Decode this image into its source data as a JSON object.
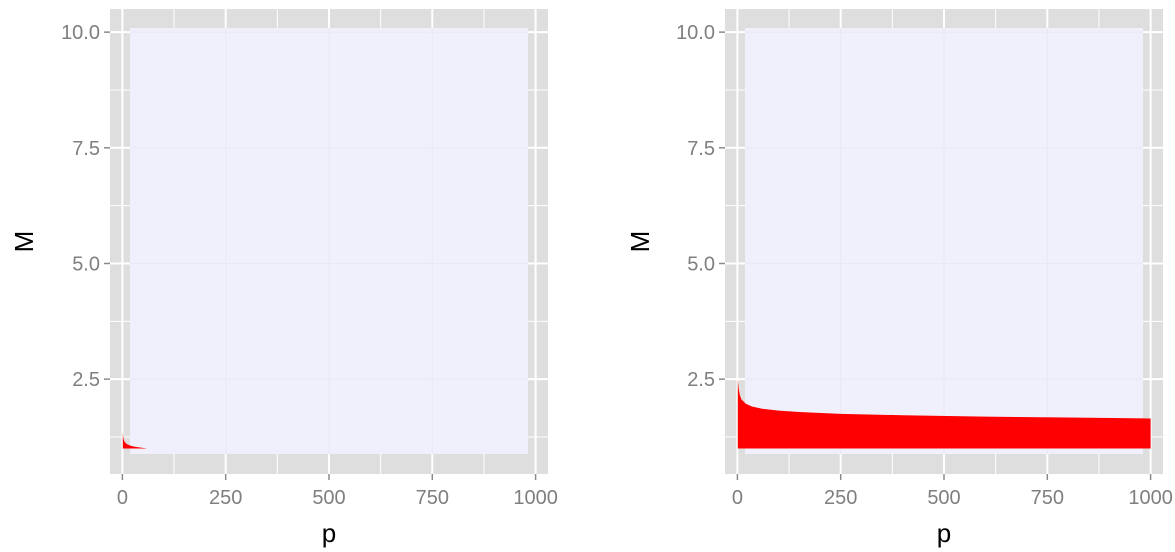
{
  "chart_data": [
    {
      "type": "area",
      "xlabel": "p",
      "ylabel": "M",
      "xlim": [
        -30,
        1030
      ],
      "ylim": [
        0.45,
        10.5
      ],
      "x_ticks": [
        0,
        250,
        500,
        750,
        1000
      ],
      "x_tick_labels": [
        "0",
        "250",
        "500",
        "750",
        "1000"
      ],
      "y_ticks": [
        2.5,
        5.0,
        7.5,
        10.0
      ],
      "y_tick_labels": [
        "2.5",
        "5.0",
        "7.5",
        "10.0"
      ],
      "grid": true,
      "series": [
        {
          "fill": "#ff0000",
          "baseline": 1.0,
          "x": [
            1,
            2,
            3,
            5,
            8,
            12,
            20,
            30,
            45,
            60,
            1000
          ],
          "values": [
            1.35,
            1.25,
            1.2,
            1.15,
            1.12,
            1.09,
            1.06,
            1.04,
            1.02,
            1.0,
            1.0
          ]
        }
      ]
    },
    {
      "type": "area",
      "xlabel": "p",
      "ylabel": "M",
      "xlim": [
        -30,
        1030
      ],
      "ylim": [
        0.45,
        10.5
      ],
      "x_ticks": [
        0,
        250,
        500,
        750,
        1000
      ],
      "x_tick_labels": [
        "0",
        "250",
        "500",
        "750",
        "1000"
      ],
      "y_ticks": [
        2.5,
        5.0,
        7.5,
        10.0
      ],
      "y_tick_labels": [
        "2.5",
        "5.0",
        "7.5",
        "10.0"
      ],
      "grid": true,
      "series": [
        {
          "fill": "#ff0000",
          "baseline": 1.0,
          "x": [
            1,
            3,
            6,
            10,
            20,
            35,
            60,
            100,
            150,
            250,
            400,
            600,
            800,
            1000
          ],
          "values": [
            2.5,
            2.3,
            2.15,
            2.06,
            1.97,
            1.91,
            1.86,
            1.82,
            1.79,
            1.75,
            1.72,
            1.69,
            1.67,
            1.65
          ]
        }
      ]
    }
  ],
  "colors": {
    "panel_bg": "#f0f0fc",
    "outer_bg": "#dedede",
    "grid_major": "#ffffff",
    "grid_minor": "#e8e8f4",
    "fill": "#ff0000",
    "tick_text": "#7f7f7f",
    "title_text": "#000000"
  }
}
